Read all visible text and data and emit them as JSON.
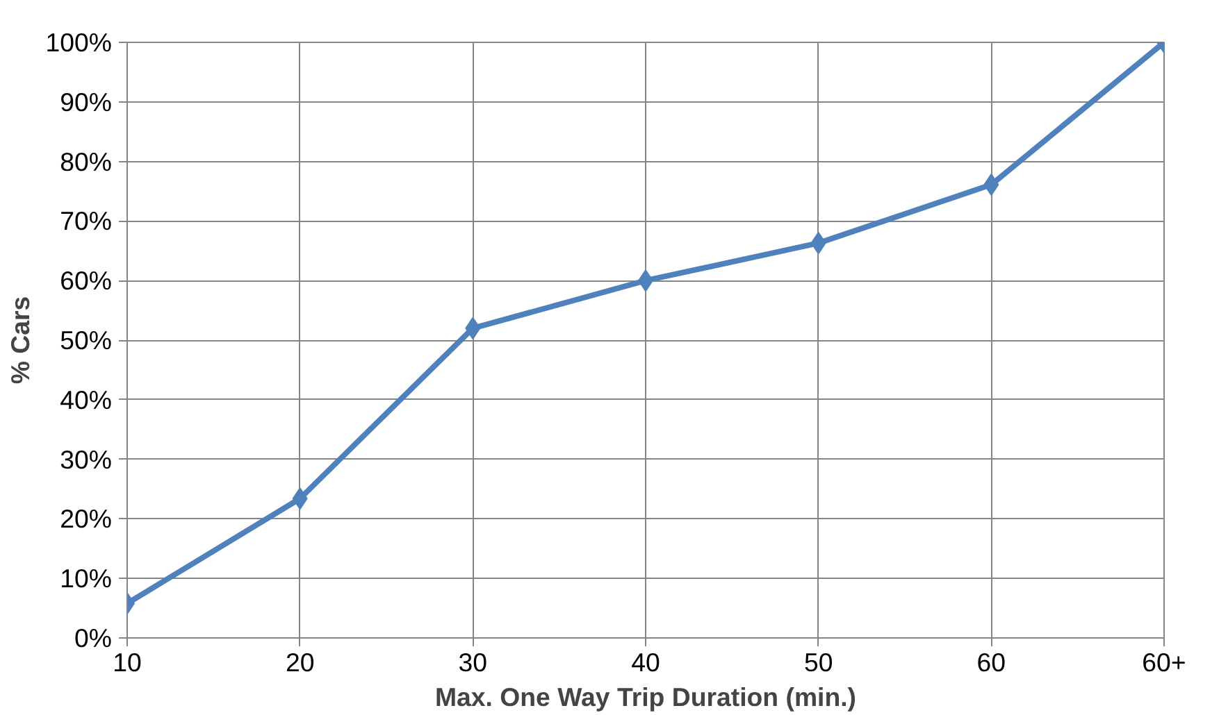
{
  "chart_data": {
    "type": "line",
    "xlabel": "Max. One Way Trip Duration (min.)",
    "ylabel": "% Cars",
    "categories": [
      "10",
      "20",
      "30",
      "40",
      "50",
      "60",
      "60+"
    ],
    "series": [
      {
        "color": "#4f81bd",
        "values": [
          5.8,
          23.4,
          52,
          60,
          66.3,
          76.1,
          100
        ]
      }
    ],
    "ylim": [
      0,
      100
    ],
    "yticks": [
      {
        "value": 0,
        "label": "0%"
      },
      {
        "value": 10,
        "label": "10%"
      },
      {
        "value": 20,
        "label": "20%"
      },
      {
        "value": 30,
        "label": "30%"
      },
      {
        "value": 40,
        "label": "40%"
      },
      {
        "value": 50,
        "label": "50%"
      },
      {
        "value": 60,
        "label": "60%"
      },
      {
        "value": 70,
        "label": "70%"
      },
      {
        "value": 80,
        "label": "80%"
      },
      {
        "value": 90,
        "label": "90%"
      },
      {
        "value": 100,
        "label": "100%"
      }
    ],
    "grid": true,
    "marker": "diamond",
    "line_style": "solid"
  }
}
